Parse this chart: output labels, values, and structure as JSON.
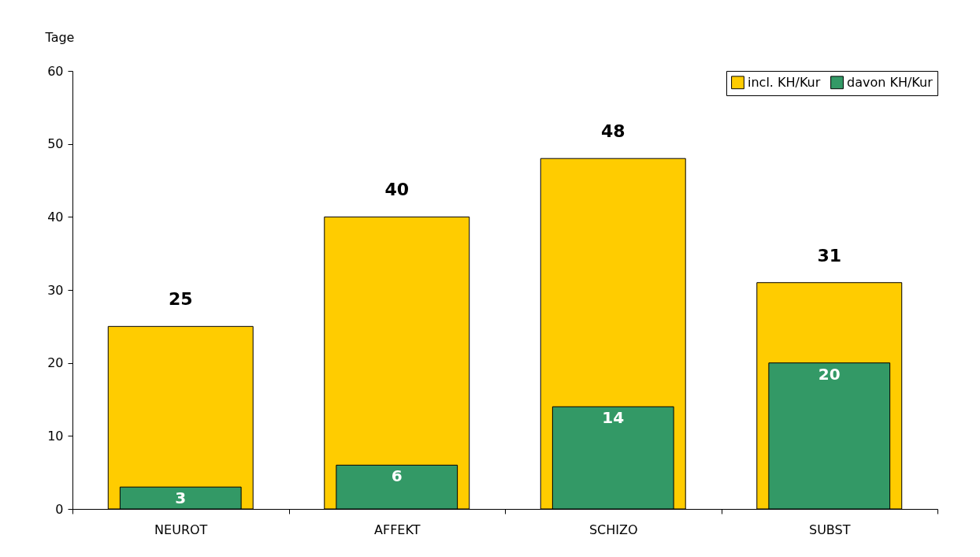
{
  "chart_data": {
    "type": "bar",
    "ylabel": "Tage",
    "categories": [
      "NEUROT",
      "AFFEKT",
      "SCHIZO",
      "SUBST"
    ],
    "series": [
      {
        "name": "incl. KH/Kur",
        "color": "#ffcc00",
        "values": [
          25,
          40,
          48,
          31
        ]
      },
      {
        "name": "davon KH/Kur",
        "color": "#339966",
        "values": [
          3,
          6,
          14,
          20
        ]
      }
    ],
    "ylim": [
      0,
      60
    ],
    "yticks": [
      0,
      10,
      20,
      30,
      40,
      50,
      60
    ],
    "grid": false,
    "legend": "top right",
    "data_labels": true
  }
}
